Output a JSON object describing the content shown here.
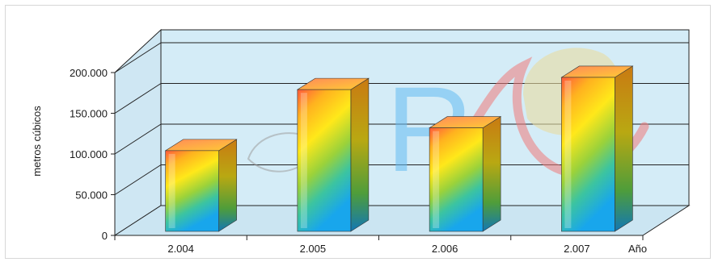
{
  "chart_data": {
    "type": "bar",
    "style": "3d",
    "categories": [
      "2.004",
      "2.005",
      "2.006",
      "2.007"
    ],
    "values": [
      112000,
      187000,
      140000,
      202000
    ],
    "ylabel": "metros cúbicos",
    "xlabel": "Año",
    "yticks": [
      "0",
      "50.000",
      "100.000",
      "150.000",
      "200.000"
    ],
    "ylim": [
      0,
      200000
    ],
    "grid": true,
    "legend": "none",
    "colors": {
      "wall": "#d4ecf7",
      "floor": "#d4ecf7",
      "bar_top": "#ff5a3c",
      "bar_mid": "#ffe21a",
      "bar_low": "#6ccc45",
      "bar_bottom": "#1aa8e8",
      "grid": "#333333"
    }
  },
  "watermark": {
    "text": "RC",
    "colors": [
      "#66bdf0",
      "#ef7b7b",
      "#e9dca0"
    ]
  }
}
